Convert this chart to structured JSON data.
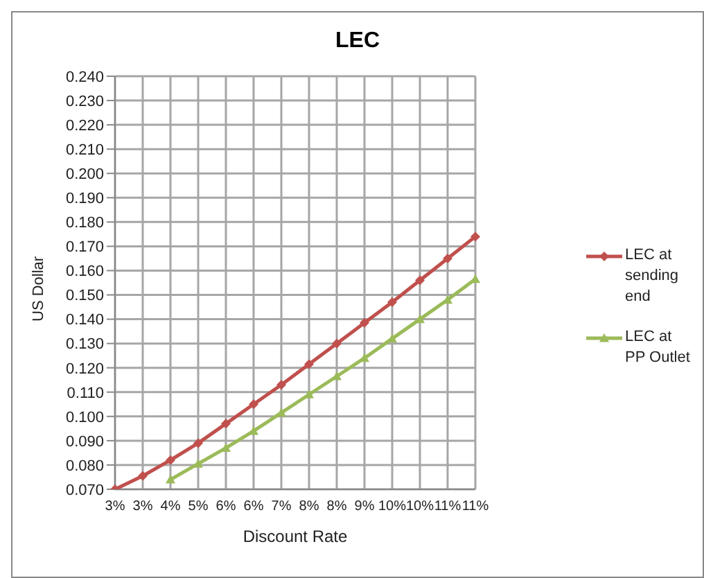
{
  "chart_data": {
    "type": "line",
    "title": "LEC",
    "xlabel": "Discount Rate",
    "ylabel": "US Dollar",
    "categories": [
      "3%",
      "3%",
      "4%",
      "5%",
      "6%",
      "6%",
      "7%",
      "8%",
      "8%",
      "9%",
      "10%",
      "10%",
      "11%",
      "11%"
    ],
    "series": [
      {
        "name": "LEC at sending end",
        "color": "#c0504d",
        "marker": "diamond",
        "values": [
          0.07,
          0.0755,
          0.082,
          0.089,
          0.097,
          0.105,
          0.113,
          0.1215,
          0.13,
          0.1385,
          0.147,
          0.156,
          0.165,
          0.174
        ]
      },
      {
        "name": "LEC at PP Outlet",
        "color": "#9bbb59",
        "marker": "triangle",
        "values": [
          null,
          null,
          0.074,
          0.0805,
          0.087,
          0.094,
          0.1015,
          0.109,
          0.1165,
          0.124,
          0.132,
          0.14,
          0.148,
          0.1565
        ]
      }
    ],
    "ylim": [
      0.07,
      0.24
    ],
    "yticks": [
      {
        "value": 0.07,
        "label": "0.070"
      },
      {
        "value": 0.08,
        "label": "0.080"
      },
      {
        "value": 0.09,
        "label": "0.090"
      },
      {
        "value": 0.1,
        "label": "0.100"
      },
      {
        "value": 0.11,
        "label": "0.110"
      },
      {
        "value": 0.12,
        "label": "0.120"
      },
      {
        "value": 0.13,
        "label": "0.130"
      },
      {
        "value": 0.14,
        "label": "0.140"
      },
      {
        "value": 0.15,
        "label": "0.150"
      },
      {
        "value": 0.16,
        "label": "0.160"
      },
      {
        "value": 0.17,
        "label": "0.170"
      },
      {
        "value": 0.18,
        "label": "0.180"
      },
      {
        "value": 0.19,
        "label": "0.190"
      },
      {
        "value": 0.2,
        "label": "0.200"
      },
      {
        "value": 0.21,
        "label": "0.210"
      },
      {
        "value": 0.22,
        "label": "0.220"
      },
      {
        "value": 0.23,
        "label": "0.230"
      },
      {
        "value": 0.24,
        "label": "0.240"
      }
    ],
    "grid": true,
    "legend": "right",
    "line_style": "solid"
  }
}
